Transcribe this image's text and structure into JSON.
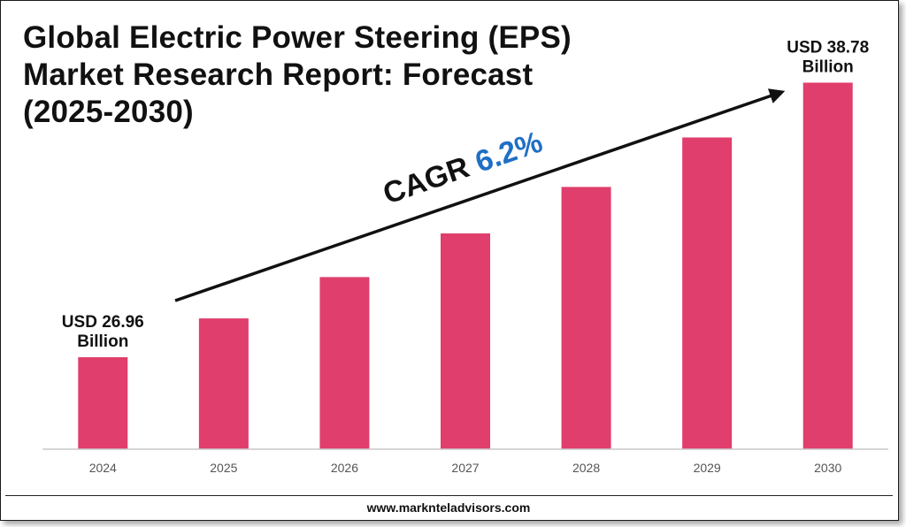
{
  "page": {
    "title_lines": [
      "Global Electric Power Steering (EPS)",
      "Market Research Report: Forecast",
      "(2025-2030)"
    ],
    "website": "www.marknteladvisors.com"
  },
  "cagr": {
    "label": "CAGR",
    "value": "6.2%",
    "label_color": "#111111",
    "value_color": "#1f6fc5"
  },
  "colors": {
    "bar": "#e03e6c",
    "axis": "#c8c8c8"
  },
  "chart_data": {
    "type": "bar",
    "title": "Global Electric Power Steering (EPS) Market Research Report: Forecast (2025-2030)",
    "categories": [
      "2024",
      "2025",
      "2026",
      "2027",
      "2028",
      "2029",
      "2030"
    ],
    "values": [
      26.96,
      28.63,
      30.41,
      32.29,
      34.29,
      36.42,
      38.78
    ],
    "unit": "USD Billion",
    "ylim": [
      23.0,
      39.75
    ],
    "xlabel": "",
    "ylabel": "",
    "grid": false,
    "annotations": [
      {
        "category": "2024",
        "lines": [
          "USD 26.96",
          "Billion"
        ]
      },
      {
        "category": "2030",
        "lines": [
          "USD 38.78",
          "Billion"
        ]
      }
    ]
  }
}
